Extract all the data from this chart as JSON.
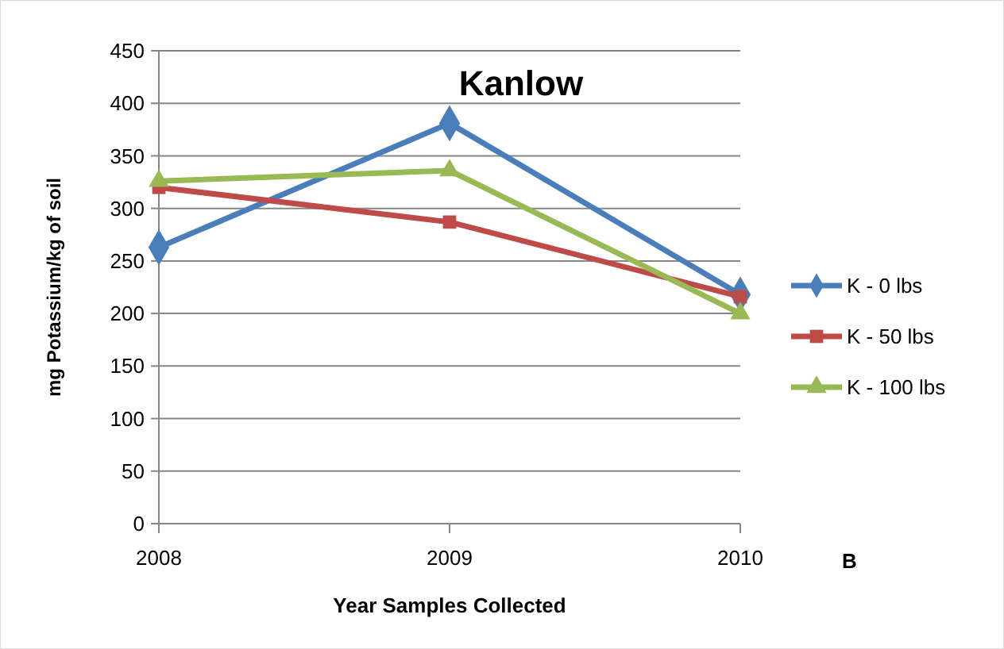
{
  "chart_data": {
    "type": "line",
    "title": "Kanlow",
    "xlabel": "Year Samples Collected",
    "ylabel": "mg Potassium/kg of soil",
    "categories": [
      "2008",
      "2009",
      "2010"
    ],
    "series": [
      {
        "name": "K - 0 lbs",
        "color": "#4a7ebb",
        "values": [
          263,
          381,
          218
        ],
        "marker": "diamond"
      },
      {
        "name": "K - 50 lbs",
        "color": "#be4b48",
        "values": [
          320,
          287,
          216
        ],
        "marker": "square"
      },
      {
        "name": "K - 100 lbs",
        "color": "#98b954",
        "values": [
          326,
          336,
          200
        ],
        "marker": "triangle"
      }
    ],
    "ylim": [
      0,
      450
    ],
    "yticks": [
      0,
      50,
      100,
      150,
      200,
      250,
      300,
      350,
      400,
      450
    ],
    "grid": "y",
    "legend": "right",
    "annotations": [
      "B"
    ]
  }
}
